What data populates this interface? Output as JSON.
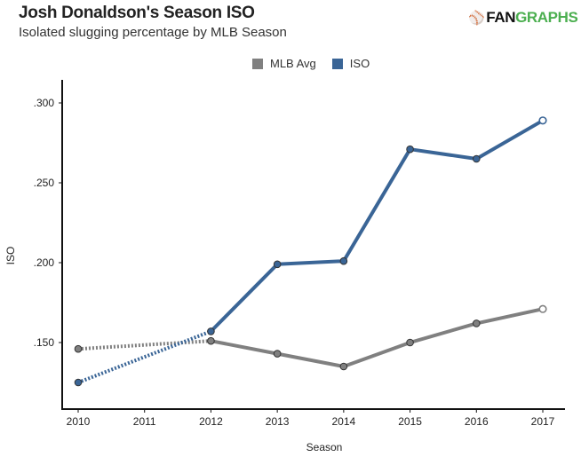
{
  "header": {
    "title": "Josh Donaldson's Season ISO",
    "subtitle": "Isolated slugging percentage by MLB Season",
    "logo_prefix": "FAN",
    "logo_suffix": "GRAPHS"
  },
  "chart_data": {
    "type": "line",
    "title": "Josh Donaldson's Season ISO",
    "subtitle": "Isolated slugging percentage by MLB Season",
    "xlabel": "Season",
    "ylabel": "ISO",
    "x": [
      2010,
      2012,
      2013,
      2014,
      2015,
      2016,
      2017
    ],
    "xticks": [
      "2010",
      "2011",
      "2012",
      "2013",
      "2014",
      "2015",
      "2016",
      "2017"
    ],
    "yticks": [
      ".150",
      ".200",
      ".250",
      ".300"
    ],
    "ytick_values": [
      0.15,
      0.2,
      0.25,
      0.3
    ],
    "xlim": [
      2010,
      2017
    ],
    "ylim": [
      0.108,
      0.313
    ],
    "grid": false,
    "legend_position": "top-center",
    "series": [
      {
        "name": "MLB Avg",
        "color": "#808080",
        "values": [
          0.146,
          0.151,
          0.143,
          0.135,
          0.15,
          0.162,
          0.171
        ]
      },
      {
        "name": "ISO",
        "color": "#3a6596",
        "values": [
          0.125,
          0.157,
          0.199,
          0.201,
          0.271,
          0.265,
          0.289
        ]
      }
    ],
    "notes": "Segment 2010-2012 drawn dotted (missing 2011 season); 2017 point drawn hollow (in-progress season)"
  }
}
